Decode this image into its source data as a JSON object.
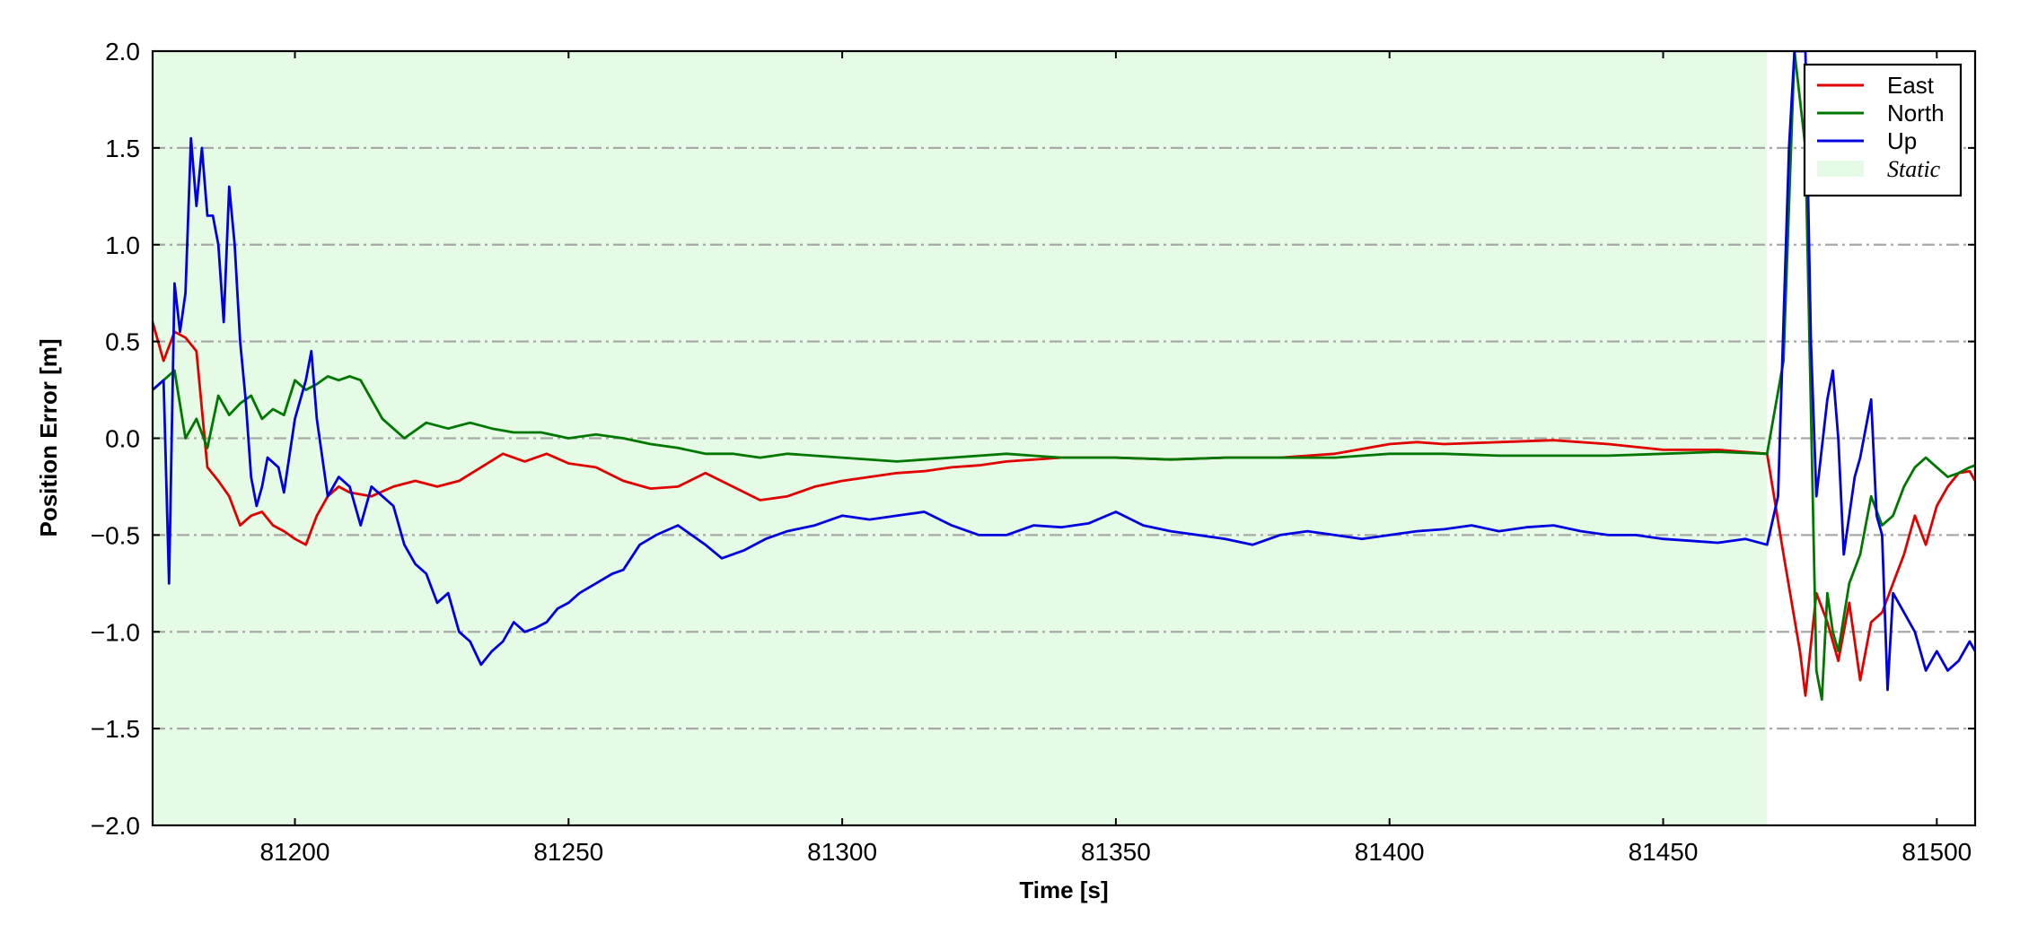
{
  "chart_data": {
    "type": "line",
    "xlabel": "Time [s]",
    "ylabel": "Position Error [m]",
    "xlim": [
      81174,
      81507
    ],
    "ylim": [
      -2.0,
      2.0
    ],
    "x_ticks": [
      81200,
      81250,
      81300,
      81350,
      81400,
      81450,
      81500
    ],
    "x_tick_labels": [
      "81200",
      "81250",
      "81300",
      "81350",
      "81400",
      "81450",
      "81500"
    ],
    "y_ticks": [
      -2.0,
      -1.5,
      -1.0,
      -0.5,
      0.0,
      0.5,
      1.0,
      1.5,
      2.0
    ],
    "y_tick_labels": [
      "−2.0",
      "−1.5",
      "−1.0",
      "−0.5",
      "0.0",
      "0.5",
      "1.0",
      "1.5",
      "2.0"
    ],
    "grid": "horizontal dash-dot",
    "legend_position": "top-right",
    "static_region": {
      "label": "Static",
      "x_start": 81174,
      "x_end": 81469,
      "color": "#e6fbe6"
    },
    "series": [
      {
        "name": "East",
        "color": "#e00000",
        "points": [
          [
            81174,
            0.6
          ],
          [
            81176,
            0.4
          ],
          [
            81178,
            0.55
          ],
          [
            81180,
            0.52
          ],
          [
            81182,
            0.45
          ],
          [
            81184,
            -0.15
          ],
          [
            81186,
            -0.22
          ],
          [
            81188,
            -0.3
          ],
          [
            81190,
            -0.45
          ],
          [
            81192,
            -0.4
          ],
          [
            81194,
            -0.38
          ],
          [
            81196,
            -0.45
          ],
          [
            81198,
            -0.48
          ],
          [
            81200,
            -0.52
          ],
          [
            81202,
            -0.55
          ],
          [
            81204,
            -0.4
          ],
          [
            81206,
            -0.3
          ],
          [
            81208,
            -0.25
          ],
          [
            81210,
            -0.28
          ],
          [
            81214,
            -0.3
          ],
          [
            81218,
            -0.25
          ],
          [
            81222,
            -0.22
          ],
          [
            81226,
            -0.25
          ],
          [
            81230,
            -0.22
          ],
          [
            81234,
            -0.15
          ],
          [
            81238,
            -0.08
          ],
          [
            81242,
            -0.12
          ],
          [
            81246,
            -0.08
          ],
          [
            81250,
            -0.13
          ],
          [
            81255,
            -0.15
          ],
          [
            81260,
            -0.22
          ],
          [
            81265,
            -0.26
          ],
          [
            81270,
            -0.25
          ],
          [
            81275,
            -0.18
          ],
          [
            81280,
            -0.25
          ],
          [
            81285,
            -0.32
          ],
          [
            81290,
            -0.3
          ],
          [
            81295,
            -0.25
          ],
          [
            81300,
            -0.22
          ],
          [
            81305,
            -0.2
          ],
          [
            81310,
            -0.18
          ],
          [
            81315,
            -0.17
          ],
          [
            81320,
            -0.15
          ],
          [
            81325,
            -0.14
          ],
          [
            81330,
            -0.12
          ],
          [
            81340,
            -0.1
          ],
          [
            81350,
            -0.1
          ],
          [
            81360,
            -0.11
          ],
          [
            81370,
            -0.1
          ],
          [
            81380,
            -0.1
          ],
          [
            81390,
            -0.08
          ],
          [
            81400,
            -0.03
          ],
          [
            81405,
            -0.02
          ],
          [
            81410,
            -0.03
          ],
          [
            81420,
            -0.02
          ],
          [
            81430,
            -0.01
          ],
          [
            81440,
            -0.03
          ],
          [
            81450,
            -0.06
          ],
          [
            81460,
            -0.06
          ],
          [
            81469,
            -0.08
          ],
          [
            81472,
            -0.6
          ],
          [
            81475,
            -1.1
          ],
          [
            81476,
            -1.33
          ],
          [
            81478,
            -0.8
          ],
          [
            81480,
            -0.95
          ],
          [
            81482,
            -1.15
          ],
          [
            81484,
            -0.85
          ],
          [
            81486,
            -1.25
          ],
          [
            81488,
            -0.95
          ],
          [
            81490,
            -0.9
          ],
          [
            81492,
            -0.75
          ],
          [
            81494,
            -0.6
          ],
          [
            81496,
            -0.4
          ],
          [
            81498,
            -0.55
          ],
          [
            81500,
            -0.35
          ],
          [
            81502,
            -0.25
          ],
          [
            81504,
            -0.18
          ],
          [
            81506,
            -0.17
          ],
          [
            81507,
            -0.22
          ]
        ]
      },
      {
        "name": "North",
        "color": "#007800",
        "points": [
          [
            81174,
            0.25
          ],
          [
            81176,
            0.3
          ],
          [
            81178,
            0.35
          ],
          [
            81180,
            0.0
          ],
          [
            81182,
            0.1
          ],
          [
            81184,
            -0.05
          ],
          [
            81186,
            0.22
          ],
          [
            81188,
            0.12
          ],
          [
            81190,
            0.18
          ],
          [
            81192,
            0.22
          ],
          [
            81194,
            0.1
          ],
          [
            81196,
            0.15
          ],
          [
            81198,
            0.12
          ],
          [
            81200,
            0.3
          ],
          [
            81202,
            0.25
          ],
          [
            81204,
            0.28
          ],
          [
            81206,
            0.32
          ],
          [
            81208,
            0.3
          ],
          [
            81210,
            0.32
          ],
          [
            81212,
            0.3
          ],
          [
            81214,
            0.2
          ],
          [
            81216,
            0.1
          ],
          [
            81218,
            0.05
          ],
          [
            81220,
            0.0
          ],
          [
            81224,
            0.08
          ],
          [
            81228,
            0.05
          ],
          [
            81232,
            0.08
          ],
          [
            81236,
            0.05
          ],
          [
            81240,
            0.03
          ],
          [
            81245,
            0.03
          ],
          [
            81250,
            0.0
          ],
          [
            81255,
            0.02
          ],
          [
            81260,
            0.0
          ],
          [
            81265,
            -0.03
          ],
          [
            81270,
            -0.05
          ],
          [
            81275,
            -0.08
          ],
          [
            81280,
            -0.08
          ],
          [
            81285,
            -0.1
          ],
          [
            81290,
            -0.08
          ],
          [
            81300,
            -0.1
          ],
          [
            81310,
            -0.12
          ],
          [
            81320,
            -0.1
          ],
          [
            81330,
            -0.08
          ],
          [
            81340,
            -0.1
          ],
          [
            81350,
            -0.1
          ],
          [
            81360,
            -0.11
          ],
          [
            81370,
            -0.1
          ],
          [
            81380,
            -0.1
          ],
          [
            81390,
            -0.1
          ],
          [
            81400,
            -0.08
          ],
          [
            81410,
            -0.08
          ],
          [
            81420,
            -0.09
          ],
          [
            81430,
            -0.09
          ],
          [
            81440,
            -0.09
          ],
          [
            81450,
            -0.08
          ],
          [
            81460,
            -0.07
          ],
          [
            81469,
            -0.08
          ],
          [
            81472,
            0.4
          ],
          [
            81474,
            2.0
          ],
          [
            81476,
            1.5
          ],
          [
            81478,
            -1.2
          ],
          [
            81479,
            -1.35
          ],
          [
            81480,
            -0.8
          ],
          [
            81481,
            -1.0
          ],
          [
            81482,
            -1.1
          ],
          [
            81484,
            -0.75
          ],
          [
            81486,
            -0.6
          ],
          [
            81488,
            -0.3
          ],
          [
            81490,
            -0.45
          ],
          [
            81492,
            -0.4
          ],
          [
            81494,
            -0.25
          ],
          [
            81496,
            -0.15
          ],
          [
            81498,
            -0.1
          ],
          [
            81500,
            -0.15
          ],
          [
            81502,
            -0.2
          ],
          [
            81504,
            -0.18
          ],
          [
            81506,
            -0.15
          ],
          [
            81507,
            -0.14
          ]
        ]
      },
      {
        "name": "Up",
        "color": "#0000e0",
        "points": [
          [
            81174,
            0.25
          ],
          [
            81176,
            0.3
          ],
          [
            81177,
            -0.75
          ],
          [
            81178,
            0.8
          ],
          [
            81179,
            0.55
          ],
          [
            81180,
            0.75
          ],
          [
            81181,
            1.55
          ],
          [
            81182,
            1.2
          ],
          [
            81183,
            1.5
          ],
          [
            81184,
            1.15
          ],
          [
            81185,
            1.15
          ],
          [
            81186,
            1.0
          ],
          [
            81187,
            0.6
          ],
          [
            81188,
            1.3
          ],
          [
            81189,
            1.0
          ],
          [
            81190,
            0.5
          ],
          [
            81191,
            0.2
          ],
          [
            81192,
            -0.2
          ],
          [
            81193,
            -0.35
          ],
          [
            81194,
            -0.25
          ],
          [
            81195,
            -0.1
          ],
          [
            81197,
            -0.15
          ],
          [
            81198,
            -0.28
          ],
          [
            81200,
            0.1
          ],
          [
            81202,
            0.3
          ],
          [
            81203,
            0.45
          ],
          [
            81204,
            0.1
          ],
          [
            81206,
            -0.3
          ],
          [
            81208,
            -0.2
          ],
          [
            81210,
            -0.25
          ],
          [
            81212,
            -0.45
          ],
          [
            81214,
            -0.25
          ],
          [
            81216,
            -0.3
          ],
          [
            81218,
            -0.35
          ],
          [
            81220,
            -0.55
          ],
          [
            81222,
            -0.65
          ],
          [
            81224,
            -0.7
          ],
          [
            81226,
            -0.85
          ],
          [
            81228,
            -0.8
          ],
          [
            81230,
            -1.0
          ],
          [
            81232,
            -1.05
          ],
          [
            81234,
            -1.17
          ],
          [
            81236,
            -1.1
          ],
          [
            81238,
            -1.05
          ],
          [
            81240,
            -0.95
          ],
          [
            81242,
            -1.0
          ],
          [
            81244,
            -0.98
          ],
          [
            81246,
            -0.95
          ],
          [
            81248,
            -0.88
          ],
          [
            81250,
            -0.85
          ],
          [
            81252,
            -0.8
          ],
          [
            81255,
            -0.75
          ],
          [
            81258,
            -0.7
          ],
          [
            81260,
            -0.68
          ],
          [
            81263,
            -0.55
          ],
          [
            81266,
            -0.5
          ],
          [
            81270,
            -0.45
          ],
          [
            81275,
            -0.55
          ],
          [
            81278,
            -0.62
          ],
          [
            81282,
            -0.58
          ],
          [
            81286,
            -0.52
          ],
          [
            81290,
            -0.48
          ],
          [
            81295,
            -0.45
          ],
          [
            81300,
            -0.4
          ],
          [
            81305,
            -0.42
          ],
          [
            81310,
            -0.4
          ],
          [
            81315,
            -0.38
          ],
          [
            81320,
            -0.45
          ],
          [
            81325,
            -0.5
          ],
          [
            81330,
            -0.5
          ],
          [
            81335,
            -0.45
          ],
          [
            81340,
            -0.46
          ],
          [
            81345,
            -0.44
          ],
          [
            81350,
            -0.38
          ],
          [
            81355,
            -0.45
          ],
          [
            81360,
            -0.48
          ],
          [
            81365,
            -0.5
          ],
          [
            81370,
            -0.52
          ],
          [
            81375,
            -0.55
          ],
          [
            81380,
            -0.5
          ],
          [
            81385,
            -0.48
          ],
          [
            81390,
            -0.5
          ],
          [
            81395,
            -0.52
          ],
          [
            81400,
            -0.5
          ],
          [
            81405,
            -0.48
          ],
          [
            81410,
            -0.47
          ],
          [
            81415,
            -0.45
          ],
          [
            81420,
            -0.48
          ],
          [
            81425,
            -0.46
          ],
          [
            81430,
            -0.45
          ],
          [
            81435,
            -0.48
          ],
          [
            81440,
            -0.5
          ],
          [
            81445,
            -0.5
          ],
          [
            81450,
            -0.52
          ],
          [
            81455,
            -0.53
          ],
          [
            81460,
            -0.54
          ],
          [
            81465,
            -0.52
          ],
          [
            81469,
            -0.55
          ],
          [
            81471,
            -0.3
          ],
          [
            81473,
            1.5
          ],
          [
            81474,
            2.0
          ],
          [
            81476,
            2.0
          ],
          [
            81477,
            0.5
          ],
          [
            81478,
            -0.3
          ],
          [
            81480,
            0.2
          ],
          [
            81481,
            0.35
          ],
          [
            81482,
            0.0
          ],
          [
            81483,
            -0.6
          ],
          [
            81485,
            -0.2
          ],
          [
            81486,
            -0.1
          ],
          [
            81488,
            0.2
          ],
          [
            81489,
            -0.4
          ],
          [
            81490,
            -0.5
          ],
          [
            81491,
            -1.3
          ],
          [
            81492,
            -0.8
          ],
          [
            81494,
            -0.9
          ],
          [
            81496,
            -1.0
          ],
          [
            81498,
            -1.2
          ],
          [
            81500,
            -1.1
          ],
          [
            81502,
            -1.2
          ],
          [
            81504,
            -1.15
          ],
          [
            81506,
            -1.05
          ],
          [
            81507,
            -1.1
          ]
        ]
      }
    ]
  }
}
